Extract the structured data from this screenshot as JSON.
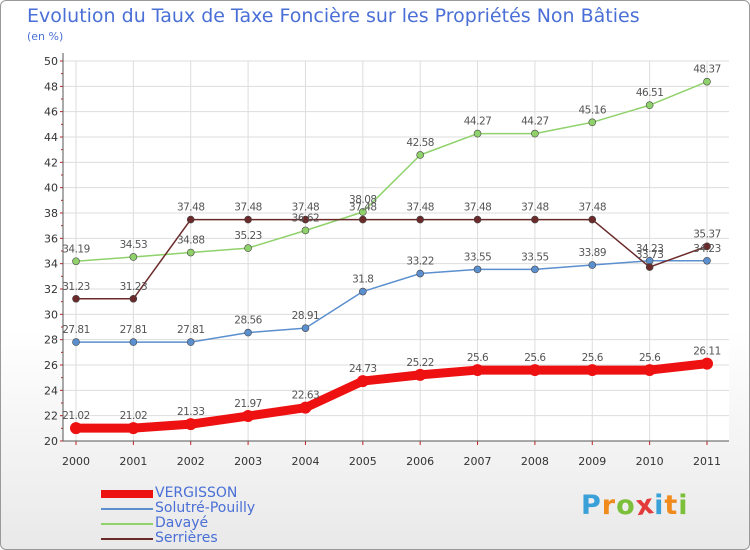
{
  "title": "Evolution du Taux de Taxe Foncière sur les Propriétés Non Bâties",
  "subtitle": "(en %)",
  "logo": {
    "letters": [
      "P",
      "r",
      "o",
      "x",
      "i",
      "t",
      "i"
    ],
    "colors": [
      "#3aa0d8",
      "#f08a1c",
      "#7bbf3a",
      "#e33b3b",
      "#3aa0d8",
      "#f08a1c",
      "#7bbf3a"
    ]
  },
  "chart_data": {
    "type": "line",
    "title": "Evolution du Taux de Taxe Foncière sur les Propriétés Non Bâties",
    "ylabel": "(en %)",
    "x": [
      "2000",
      "2001",
      "2002",
      "2003",
      "2004",
      "2005",
      "2006",
      "2007",
      "2008",
      "2009",
      "2010",
      "2011"
    ],
    "ylim": [
      20,
      50
    ],
    "yticks": [
      "20",
      "22",
      "24",
      "26",
      "28",
      "30",
      "32",
      "34",
      "36",
      "38",
      "40",
      "42",
      "44",
      "46",
      "48",
      "50"
    ],
    "grid": true,
    "legend_position": "bottom-left",
    "series": [
      {
        "name": "VERGISSON",
        "color": "#ee1111",
        "values": [
          21.02,
          21.02,
          21.33,
          21.97,
          22.63,
          24.73,
          25.22,
          25.6,
          25.6,
          25.6,
          25.6,
          26.11
        ],
        "labels": [
          "21.02",
          "21.02",
          "21.33",
          "21.97",
          "22.63",
          "24.73",
          "25.22",
          "25.6",
          "25.6",
          "25.6",
          "25.6",
          "26.11"
        ]
      },
      {
        "name": "Solutré-Pouilly",
        "color": "#5b8fce",
        "values": [
          27.81,
          27.81,
          27.81,
          28.56,
          28.91,
          31.8,
          33.22,
          33.55,
          33.55,
          33.89,
          34.23,
          34.23
        ],
        "labels": [
          "27.81",
          "27.81",
          "27.81",
          "28.56",
          "28.91",
          "31.8",
          "33.22",
          "33.55",
          "33.55",
          "33.89",
          "34.23",
          "34.23"
        ]
      },
      {
        "name": "Davayé",
        "color": "#8fd16a",
        "values": [
          34.19,
          34.53,
          34.88,
          35.23,
          36.62,
          38.08,
          42.58,
          44.27,
          44.27,
          45.16,
          46.51,
          48.37
        ],
        "labels": [
          "34.19",
          "34.53",
          "34.88",
          "35.23",
          "36.62",
          "38.08",
          "42.58",
          "44.27",
          "44.27",
          "45.16",
          "46.51",
          "48.37"
        ]
      },
      {
        "name": "Serrières",
        "color": "#6b2a2a",
        "values": [
          31.23,
          31.23,
          37.48,
          37.48,
          37.48,
          37.48,
          37.48,
          37.48,
          37.48,
          37.48,
          33.73,
          35.37
        ],
        "labels": [
          "31.23",
          "31.23",
          "37.48",
          "37.48",
          "37.48",
          "37.48",
          "37.48",
          "37.48",
          "37.48",
          "37.48",
          "33.73",
          "35.37"
        ]
      }
    ]
  }
}
